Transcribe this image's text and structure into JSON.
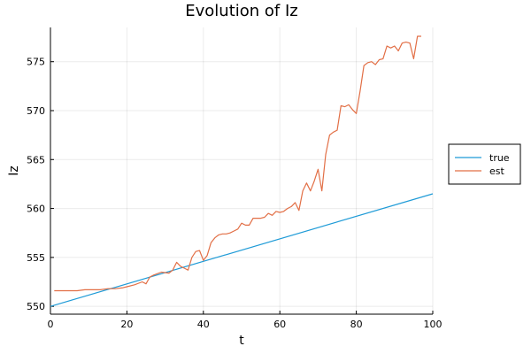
{
  "chart_data": {
    "type": "line",
    "title": "Evolution of Iz",
    "xlabel": "t",
    "ylabel": "Iz",
    "xlim": [
      0,
      100
    ],
    "ylim": [
      549.2,
      578.5
    ],
    "xticks": [
      0,
      20,
      40,
      60,
      80,
      100
    ],
    "yticks": [
      550,
      555,
      560,
      565,
      570,
      575
    ],
    "grid": true,
    "legend": "right",
    "series": [
      {
        "name": "true",
        "color": "#1f9bd7",
        "x": [
          0,
          100
        ],
        "y": [
          550.0,
          561.5
        ]
      },
      {
        "name": "est",
        "color": "#e26f46",
        "x": [
          1,
          3,
          5,
          7,
          9,
          11,
          13,
          15,
          17,
          19,
          20,
          22,
          24,
          25,
          26,
          27,
          29,
          31,
          32,
          33,
          34,
          35,
          36,
          37,
          38,
          39,
          40,
          41,
          42,
          43,
          44,
          45,
          46,
          47,
          48,
          49,
          50,
          51,
          52,
          53,
          54,
          55,
          56,
          57,
          58,
          59,
          60,
          61,
          62,
          63,
          64,
          65,
          66,
          67,
          68,
          69,
          70,
          71,
          72,
          73,
          74,
          75,
          76,
          77,
          78,
          79,
          80,
          81,
          82,
          83,
          84,
          85,
          86,
          87,
          88,
          89,
          90,
          91,
          92,
          93,
          94,
          95,
          96,
          97
        ],
        "y": [
          551.6,
          551.6,
          551.6,
          551.6,
          551.7,
          551.7,
          551.7,
          551.8,
          551.8,
          551.9,
          552.0,
          552.2,
          552.5,
          552.3,
          553.0,
          553.2,
          553.5,
          553.4,
          553.7,
          554.5,
          554.1,
          553.9,
          553.7,
          555.0,
          555.6,
          555.7,
          554.7,
          555.2,
          556.5,
          557.0,
          557.3,
          557.4,
          557.4,
          557.5,
          557.7,
          557.9,
          558.5,
          558.3,
          558.3,
          559.0,
          559.0,
          559.0,
          559.1,
          559.5,
          559.3,
          559.7,
          559.6,
          559.7,
          560.0,
          560.2,
          560.6,
          559.8,
          561.8,
          562.6,
          561.8,
          562.8,
          564.0,
          561.8,
          565.5,
          567.5,
          567.8,
          568.0,
          570.5,
          570.4,
          570.6,
          570.1,
          569.7,
          572.0,
          574.6,
          574.9,
          575.0,
          574.7,
          575.2,
          575.3,
          576.6,
          576.4,
          576.6,
          576.1,
          576.9,
          577.0,
          576.9,
          575.3,
          577.6,
          577.6
        ]
      }
    ]
  }
}
